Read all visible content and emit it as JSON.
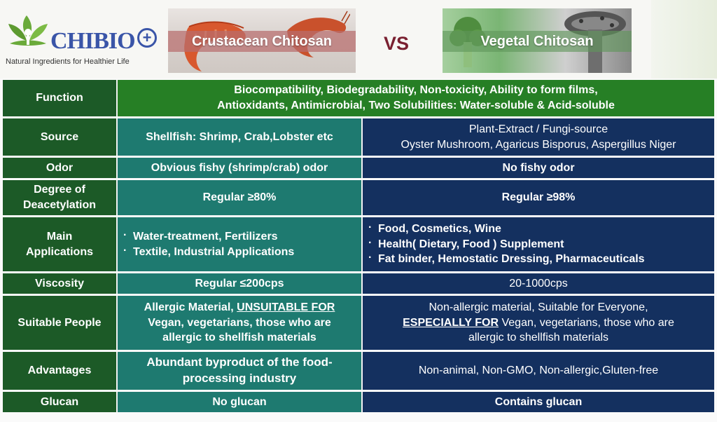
{
  "brand": {
    "name": "CHIBIO",
    "plus": "+",
    "tagline": "Natural Ingredients for Healthier Life"
  },
  "header": {
    "left_title": "Crustacean Chitosan",
    "vs": "VS",
    "right_title": "Vegetal Chitosan"
  },
  "colors": {
    "label_col": "#1c5a27",
    "crustacean_col": "#1e7a70",
    "vegetal_col": "#14305f",
    "function_row": "#267f25",
    "vs_text": "#7a2131",
    "brand_blue": "#3a55a8",
    "brand_green": "#6aaa3a"
  },
  "rows": {
    "function": {
      "label": "Function",
      "line1": "Biocompatibility, Biodegradability, Non-toxicity, Ability to form films,",
      "line2": "Antioxidants, Antimicrobial, Two Solubilities: Water-soluble & Acid-soluble"
    },
    "source": {
      "label": "Source",
      "a": "Shellfish: Shrimp, Crab,Lobster etc",
      "b1": "Plant-Extract / Fungi-source",
      "b2": "Oyster Mushroom, Agaricus Bisporus, Aspergillus Niger"
    },
    "odor": {
      "label": "Odor",
      "a": "Obvious fishy (shrimp/crab) odor",
      "b": "No fishy odor"
    },
    "deacetylation": {
      "label1": "Degree of",
      "label2": "Deacetylation",
      "a": "Regular ≥80%",
      "b": "Regular ≥98%"
    },
    "applications": {
      "label1": "Main",
      "label2": "Applications",
      "a": [
        "Water-treatment, Fertilizers",
        "Textile, Industrial Applications"
      ],
      "b": [
        "Food, Cosmetics, Wine",
        "Health( Dietary, Food ) Supplement",
        "Fat binder, Hemostatic Dressing, Pharmaceuticals"
      ]
    },
    "viscosity": {
      "label": "Viscosity",
      "a": "Regular ≤200cps",
      "b": "20-1000cps"
    },
    "suitable": {
      "label": "Suitable People",
      "a_line1_pre": "Allergic Material, ",
      "a_line1_u": "UNSUITABLE FOR",
      "a_line2": "Vegan, vegetarians, those who are",
      "a_line3": "allergic to shellfish materials",
      "b_line1": "Non-allergic material, Suitable for Everyone,",
      "b_line2_u": "ESPECIALLY FOR",
      "b_line2_post": " Vegan, vegetarians, those who are",
      "b_line3": "allergic to shellfish materials"
    },
    "advantages": {
      "label": "Advantages",
      "a1": "Abundant byproduct of the food-",
      "a2": "processing industry",
      "b": "Non-animal, Non-GMO, Non-allergic,Gluten-free"
    },
    "glucan": {
      "label": "Glucan",
      "a": "No glucan",
      "b": "Contains glucan"
    }
  }
}
